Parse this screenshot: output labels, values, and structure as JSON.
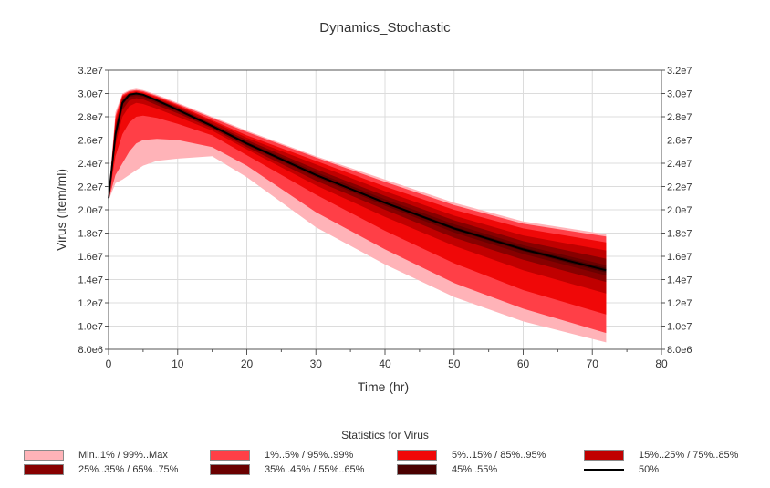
{
  "chart_data": {
    "type": "area",
    "title": "Dynamics_Stochastic",
    "xlabel": "Time (hr)",
    "ylabel": "Virus (item/ml)",
    "xlim": [
      0,
      80
    ],
    "ylim": [
      8000000,
      32000000
    ],
    "x_ticks": [
      "0",
      "10",
      "20",
      "30",
      "40",
      "50",
      "60",
      "70",
      "80"
    ],
    "y_ticks": [
      "8.0e6",
      "1.0e7",
      "1.2e7",
      "1.4e7",
      "1.6e7",
      "1.8e7",
      "2.0e7",
      "2.2e7",
      "2.4e7",
      "2.6e7",
      "2.8e7",
      "3.0e7",
      "3.2e7"
    ],
    "grid": true,
    "x": [
      0,
      1,
      2,
      3,
      4,
      5,
      7,
      10,
      15,
      20,
      30,
      40,
      50,
      60,
      72
    ],
    "median": [
      21000000,
      26500000,
      29200000,
      29900000,
      30000000,
      29900000,
      29400000,
      28600000,
      27200000,
      25700000,
      23000000,
      20600000,
      18400000,
      16600000,
      14800000
    ],
    "bands": [
      {
        "name": "Min..1% / 99%..Max",
        "color": "#ffb3b8",
        "lower": [
          20800000,
          22300000,
          22600000,
          23000000,
          23400000,
          23800000,
          24200000,
          24400000,
          24600000,
          22800000,
          18500000,
          15300000,
          12500000,
          10400000,
          8600000
        ],
        "upper": [
          21200000,
          28400000,
          30000000,
          30300000,
          30400000,
          30300000,
          29900000,
          29200000,
          28000000,
          26800000,
          24600000,
          22600000,
          20600000,
          19000000,
          17900000
        ]
      },
      {
        "name": "1%..5% / 95%..99%",
        "color": "#ff3f47",
        "lower": [
          20850000,
          23000000,
          24000000,
          25000000,
          25700000,
          26000000,
          26100000,
          26000000,
          25400000,
          23800000,
          19800000,
          16600000,
          13700000,
          11500000,
          9400000
        ],
        "upper": [
          21150000,
          28100000,
          29900000,
          30200000,
          30300000,
          30200000,
          29800000,
          29100000,
          27900000,
          26700000,
          24500000,
          22400000,
          20400000,
          18800000,
          17700000
        ]
      },
      {
        "name": "5%..15% / 85%..95%",
        "color": "#f00808",
        "lower": [
          20900000,
          24600000,
          26500000,
          27500000,
          28000000,
          28100000,
          27900000,
          27400000,
          26400000,
          24700000,
          21300000,
          18200000,
          15400000,
          13100000,
          11000000
        ],
        "upper": [
          21100000,
          27800000,
          29800000,
          30100000,
          30200000,
          30100000,
          29700000,
          29000000,
          27700000,
          26400000,
          24200000,
          22000000,
          20000000,
          18400000,
          17200000
        ]
      },
      {
        "name": "15%..25% / 75%..85%",
        "color": "#c00000",
        "lower": [
          20930000,
          25600000,
          28000000,
          28900000,
          29200000,
          29100000,
          28700000,
          28000000,
          26800000,
          25200000,
          22100000,
          19400000,
          16900000,
          14800000,
          12800000
        ],
        "upper": [
          21070000,
          27400000,
          29700000,
          30000000,
          30100000,
          30000000,
          29600000,
          28900000,
          27600000,
          26200000,
          23900000,
          21600000,
          19500000,
          17800000,
          16500000
        ]
      },
      {
        "name": "25%..35% / 65%..75%",
        "color": "#870000",
        "lower": [
          20950000,
          26000000,
          28600000,
          29400000,
          29600000,
          29500000,
          29000000,
          28300000,
          27000000,
          25400000,
          22500000,
          20000000,
          17600000,
          15700000,
          13800000
        ],
        "upper": [
          21050000,
          27100000,
          29500000,
          30000000,
          30050000,
          29950000,
          29500000,
          28800000,
          27400000,
          26000000,
          23500000,
          21200000,
          19100000,
          17300000,
          15800000
        ]
      },
      {
        "name": "35%..45% / 55%..65%",
        "color": "#6a0000",
        "lower": [
          20970000,
          26300000,
          29000000,
          29700000,
          29800000,
          29700000,
          29200000,
          28450000,
          27100000,
          25550000,
          22800000,
          20350000,
          18050000,
          16200000,
          14350000
        ],
        "upper": [
          21030000,
          26800000,
          29400000,
          29950000,
          30000000,
          29900000,
          29450000,
          28700000,
          27300000,
          25850000,
          23250000,
          20900000,
          18750000,
          16950000,
          15250000
        ]
      },
      {
        "name": "45%..55%",
        "color": "#4a0000",
        "lower": [
          20990000,
          26400000,
          29100000,
          29850000,
          29950000,
          29850000,
          29350000,
          28550000,
          27150000,
          25650000,
          22930000,
          20500000,
          18270000,
          16450000,
          14600000
        ],
        "upper": [
          21010000,
          26600000,
          29300000,
          29950000,
          30050000,
          29950000,
          29450000,
          28650000,
          27250000,
          25750000,
          23070000,
          20700000,
          18530000,
          16750000,
          15000000
        ]
      }
    ],
    "legend": {
      "title": "Statistics for Virus",
      "placement": "bottom",
      "items": [
        {
          "label": "Min..1% / 99%..Max",
          "color": "#ffb3b8",
          "kind": "band"
        },
        {
          "label": "1%..5% / 95%..99%",
          "color": "#ff3f47",
          "kind": "band"
        },
        {
          "label": "5%..15% / 85%..95%",
          "color": "#f00808",
          "kind": "band"
        },
        {
          "label": "15%..25% / 75%..85%",
          "color": "#c00000",
          "kind": "band"
        },
        {
          "label": "25%..35% / 65%..75%",
          "color": "#870000",
          "kind": "band"
        },
        {
          "label": "35%..45% / 55%..65%",
          "color": "#6a0000",
          "kind": "band"
        },
        {
          "label": "45%..55%",
          "color": "#4a0000",
          "kind": "band"
        },
        {
          "label": "50%",
          "color": "#000000",
          "kind": "line"
        }
      ]
    }
  }
}
